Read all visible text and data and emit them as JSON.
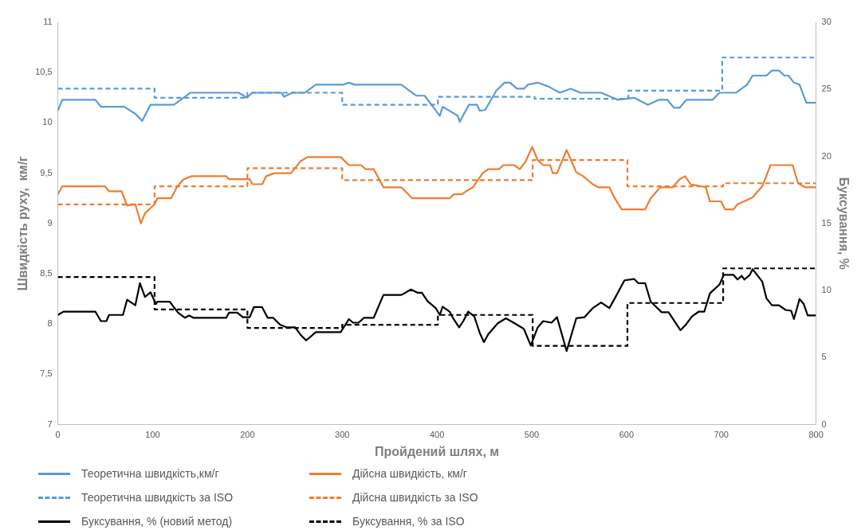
{
  "chart_data": {
    "type": "line",
    "xlabel": "Пройдений шлях, м",
    "ylabel": "Швидкість руху,  км/г",
    "y2label": "Буксування, %",
    "xlim": [
      0,
      800
    ],
    "xticks": [
      0,
      100,
      200,
      300,
      400,
      500,
      600,
      700,
      800
    ],
    "ylim": [
      7,
      11
    ],
    "yticks": [
      7,
      {
        "value": 7.5,
        "label": "7,5"
      },
      8,
      {
        "value": 8.5,
        "label": "8,5"
      },
      9,
      {
        "value": 9.5,
        "label": "9,5"
      },
      10,
      {
        "value": 10.5,
        "label": "10,5"
      },
      11
    ],
    "y2lim": [
      0,
      30
    ],
    "y2ticks": [
      0,
      5,
      10,
      15,
      20,
      25,
      30
    ],
    "grid": false,
    "legend": "bottom",
    "marker": "none",
    "series": [
      {
        "name": "Теоретична швидкість,км/г",
        "type": "line",
        "color": "#5b9bd5",
        "line_style": "solid",
        "x": [
          0,
          4.6,
          39.5,
          45.4,
          70,
          81.7,
          89,
          97.7,
          122.4,
          140,
          190.8,
          199.5,
          205,
          235.8,
          238.7,
          247.5,
          260.6,
          272.2,
          301.2,
          307,
          313,
          362.3,
          378.4,
          387,
          395.8,
          403,
          406,
          422,
          424,
          433.6,
          442.3,
          445.2,
          451,
          462.6,
          471.3,
          477.2,
          484.4,
          491.7,
          496,
          506.3,
          518,
          529.6,
          541.2,
          551.4,
          573.2,
          590.6,
          599.3,
          608,
          622.6,
          634.3,
          643,
          650.2,
          656,
          663.3,
          691,
          698.2,
          715.7,
          727.3,
          733.1,
          747.7,
          753.5,
          760.8,
          766.6,
          770.9,
          776.7,
          782.6,
          789.8,
          800
        ],
        "values": [
          10.12,
          10.23,
          10.23,
          10.16,
          10.16,
          10.09,
          10.02,
          10.18,
          10.18,
          10.3,
          10.3,
          10.25,
          10.3,
          10.3,
          10.26,
          10.3,
          10.3,
          10.38,
          10.38,
          10.4,
          10.38,
          10.38,
          10.27,
          10.27,
          10.16,
          10.07,
          10.16,
          10.07,
          10.01,
          10.18,
          10.18,
          10.12,
          10.13,
          10.32,
          10.4,
          10.4,
          10.34,
          10.34,
          10.38,
          10.4,
          10.36,
          10.3,
          10.34,
          10.3,
          10.3,
          10.23,
          10.24,
          10.25,
          10.18,
          10.23,
          10.23,
          10.15,
          10.15,
          10.23,
          10.23,
          10.3,
          10.3,
          10.38,
          10.47,
          10.47,
          10.52,
          10.52,
          10.47,
          10.47,
          10.4,
          10.38,
          10.2,
          10.2
        ]
      },
      {
        "name": "Дійсна швидкість, км/г",
        "type": "line",
        "color": "#ed7d31",
        "line_style": "solid",
        "x": [
          0,
          4.6,
          49.7,
          54,
          67.2,
          73,
          81.7,
          87.5,
          91.9,
          102,
          105,
          119.5,
          125.4,
          132.6,
          141.3,
          177.7,
          180.6,
          202.4,
          205.3,
          215.5,
          219.8,
          228.6,
          246,
          256.2,
          263.5,
          298.4,
          307.1,
          320.2,
          324.5,
          333.3,
          343.5,
          362.3,
          374,
          407.4,
          413.3,
          417.6,
          426.3,
          430.7,
          438,
          448.2,
          454,
          465.6,
          470,
          481.6,
          487.4,
          493.2,
          500.5,
          506.3,
          512.1,
          519.4,
          522.3,
          526.7,
          536.8,
          547,
          554.3,
          564.4,
          570.3,
          581.9,
          587.7,
          594.9,
          619.7,
          625.5,
          635.7,
          648.8,
          656,
          661.9,
          667.7,
          683.7,
          688,
          699.7,
          704,
          712.8,
          717.2,
          733.1,
          743.3,
          752,
          775.3,
          781.1,
          788.4,
          800
        ],
        "values": [
          9.29,
          9.37,
          9.37,
          9.32,
          9.32,
          9.18,
          9.19,
          9.0,
          9.1,
          9.19,
          9.25,
          9.25,
          9.36,
          9.44,
          9.47,
          9.47,
          9.44,
          9.44,
          9.39,
          9.39,
          9.47,
          9.5,
          9.5,
          9.62,
          9.66,
          9.66,
          9.58,
          9.58,
          9.54,
          9.54,
          9.36,
          9.36,
          9.25,
          9.25,
          9.25,
          9.29,
          9.29,
          9.32,
          9.36,
          9.5,
          9.54,
          9.54,
          9.58,
          9.58,
          9.54,
          9.61,
          9.76,
          9.63,
          9.58,
          9.58,
          9.5,
          9.5,
          9.73,
          9.51,
          9.47,
          9.39,
          9.36,
          9.36,
          9.25,
          9.14,
          9.14,
          9.25,
          9.36,
          9.36,
          9.44,
          9.47,
          9.39,
          9.36,
          9.22,
          9.22,
          9.14,
          9.14,
          9.19,
          9.26,
          9.37,
          9.58,
          9.58,
          9.4,
          9.36,
          9.36
        ]
      },
      {
        "name": "Теоретична швидкість за ISO",
        "type": "step",
        "color": "#5b9bd5",
        "line_style": "dashed",
        "x": [
          0,
          102,
          200,
          300,
          401,
          503,
          602,
          701,
          800
        ],
        "values": [
          10.34,
          10.25,
          10.3,
          10.18,
          10.26,
          10.24,
          10.32,
          10.65,
          10.65
        ]
      },
      {
        "name": "Дійсна швидкість за ISO",
        "type": "step",
        "color": "#ed7d31",
        "line_style": "dashed",
        "x": [
          0,
          102,
          200,
          300,
          501,
          601,
          702,
          800
        ],
        "values": [
          9.19,
          9.37,
          9.55,
          9.43,
          9.63,
          9.37,
          9.4,
          9.4
        ]
      },
      {
        "name": "Буксування, % (новий метод)",
        "type": "line",
        "color": "#000000",
        "line_style": "solid",
        "axis": "y2",
        "x": [
          0,
          6.1,
          39.5,
          45.4,
          51.2,
          54,
          68.7,
          73,
          81.7,
          86.6,
          91.9,
          97.7,
          103.5,
          105,
          118,
          126.8,
          134.1,
          138.5,
          142.8,
          177.7,
          180.6,
          189.3,
          195.2,
          202.4,
          206.8,
          215.5,
          221.3,
          227.1,
          234.4,
          241.7,
          250.4,
          256.2,
          262,
          272.2,
          298.4,
          307.1,
          311.5,
          317.3,
          323.1,
          333.3,
          343.5,
          362.3,
          366.7,
          372.5,
          379.8,
          384.1,
          390,
          398.7,
          403,
          406,
          413.3,
          417.6,
          423.4,
          427.8,
          433,
          439.4,
          445.2,
          449.6,
          454,
          464.1,
          472.8,
          483,
          491.7,
          499,
          506.3,
          512.1,
          520.8,
          526.7,
          536.8,
          547,
          555.7,
          564.4,
          573.2,
          581.9,
          587.7,
          597.9,
          608,
          612.4,
          619.7,
          625.5,
          637.1,
          644.4,
          656.9,
          661.9,
          669.1,
          676.4,
          682.2,
          688,
          698.2,
          702.6,
          712.8,
          717.2,
          721.5,
          724.4,
          730.2,
          733.1,
          743.3,
          747.7,
          753.5,
          760.8,
          768,
          773.8,
          776.7,
          782.6,
          787,
          791.2,
          800
        ],
        "values": [
          8.18,
          8.43,
          8.43,
          7.72,
          7.72,
          8.18,
          8.18,
          9.31,
          8.9,
          10.55,
          9.52,
          9.87,
          9.0,
          9.17,
          9.17,
          8.35,
          7.97,
          8.14,
          7.97,
          7.97,
          8.35,
          8.35,
          8.01,
          8.01,
          8.76,
          8.76,
          7.97,
          7.97,
          7.45,
          7.25,
          7.25,
          6.69,
          6.28,
          6.9,
          6.9,
          7.87,
          7.6,
          7.6,
          7.97,
          7.97,
          9.67,
          9.67,
          9.83,
          10.08,
          9.83,
          9.83,
          9.21,
          8.69,
          8.18,
          8.8,
          8.43,
          7.87,
          7.25,
          7.72,
          8.43,
          8.07,
          6.83,
          6.15,
          6.73,
          7.56,
          7.93,
          7.51,
          7.14,
          5.9,
          7.25,
          7.72,
          7.6,
          8.01,
          5.49,
          7.93,
          8.01,
          8.69,
          9.11,
          8.69,
          9.42,
          10.76,
          10.86,
          10.55,
          10.55,
          9.17,
          8.38,
          8.38,
          7.04,
          7.39,
          8.07,
          8.43,
          8.43,
          9.79,
          10.45,
          11.17,
          11.17,
          10.82,
          11.1,
          10.82,
          11.17,
          11.59,
          10.66,
          9.42,
          8.9,
          8.9,
          8.55,
          8.49,
          7.87,
          9.37,
          9.0,
          8.14,
          8.14
        ]
      },
      {
        "name": "Буксування, % за ISO",
        "type": "step",
        "color": "#000000",
        "line_style": "dashed",
        "axis": "y2",
        "x": [
          0,
          102,
          200,
          300,
          401,
          501,
          601,
          702,
          800
        ],
        "values": [
          11.0,
          8.59,
          7.21,
          7.45,
          8.18,
          5.87,
          9.07,
          11.65,
          11.65
        ]
      }
    ]
  }
}
